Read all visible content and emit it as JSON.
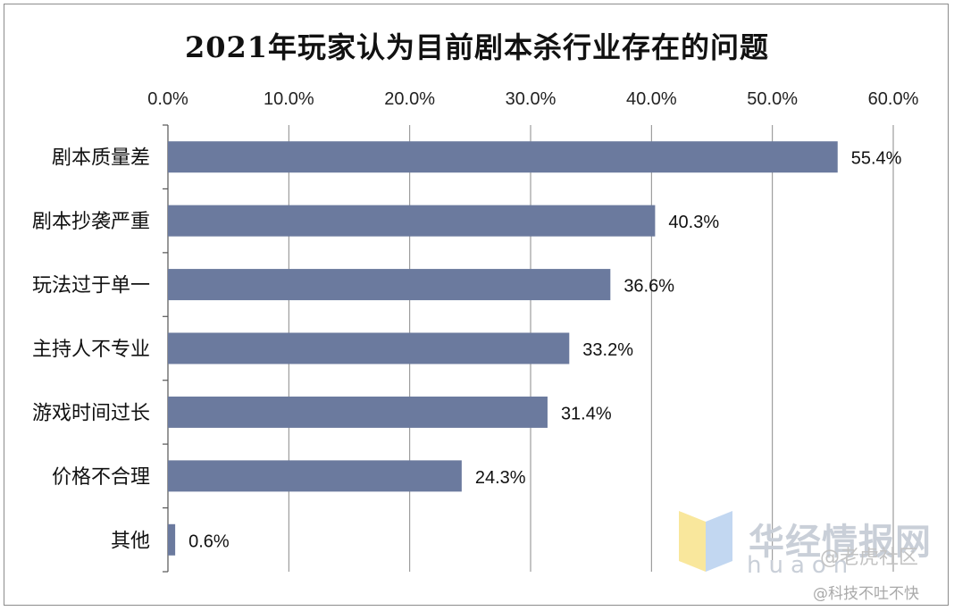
{
  "chart_data": {
    "type": "bar",
    "orientation": "horizontal",
    "title": "2021年玩家认为目前剧本杀行业存在的问题",
    "categories": [
      "剧本质量差",
      "剧本抄袭严重",
      "玩法过于单一",
      "主持人不专业",
      "游戏时间过长",
      "价格不合理",
      "其他"
    ],
    "values": [
      55.4,
      40.3,
      36.6,
      33.2,
      31.4,
      24.3,
      0.6
    ],
    "value_labels": [
      "55.4%",
      "40.3%",
      "36.6%",
      "33.2%",
      "31.4%",
      "24.3%",
      "0.6%"
    ],
    "xlim": [
      0,
      60
    ],
    "x_ticks": [
      "0.0%",
      "10.0%",
      "20.0%",
      "30.0%",
      "40.0%",
      "50.0%",
      "60.0%"
    ],
    "x_axis_position": "top",
    "grid": true,
    "bar_color": "#6b7a9e",
    "legend": "none"
  },
  "watermarks": {
    "brand_cn": "华经情报网",
    "brand_pinyin": "huaon",
    "community": "@老虎社区",
    "source": "@科技不吐不快"
  }
}
